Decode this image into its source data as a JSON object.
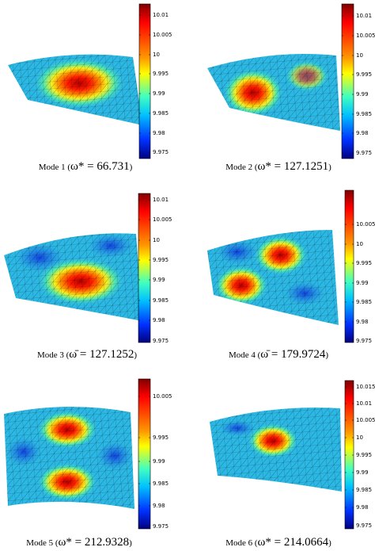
{
  "panels": [
    {
      "caption": {
        "prefix": "Mode 1 (",
        "expr": "ω* = 66.731",
        "suffix": ")"
      },
      "colorbar": [
        "10.01",
        "10.005",
        "10",
        "9.995",
        "9.99",
        "9.985",
        "9.98",
        "9.975"
      ]
    },
    {
      "caption": {
        "prefix": "Mode 2 (",
        "expr": "ω* = 127.1251",
        "suffix": ")"
      },
      "colorbar": [
        "10.01",
        "10.005",
        "10",
        "9.995",
        "9.99",
        "9.985",
        "9.98",
        "9.975"
      ]
    },
    {
      "caption": {
        "prefix": "Mode 3 (",
        "expr": "ω̄ = 127.1252",
        "suffix": ")"
      },
      "colorbar": [
        "10.01",
        "10.005",
        "10",
        "9.995",
        "9.99",
        "9.985",
        "9.98",
        "9.975"
      ]
    },
    {
      "caption": {
        "prefix": "Mode 4 (",
        "expr": "ω̄ = 179.9724",
        "suffix": ")"
      },
      "colorbar": [
        "10.005",
        "10",
        "9.995",
        "9.99",
        "9.985",
        "9.98",
        "9.975"
      ]
    },
    {
      "caption": {
        "prefix": "Mode 5 (",
        "expr": "ω* = 212.9328",
        "suffix": ")"
      },
      "colorbar": [
        "10.005",
        "9.995",
        "9.99",
        "9.985",
        "9.98",
        "9.975"
      ]
    },
    {
      "caption": {
        "prefix": "Mode 6 (",
        "expr": "ω* = 214.0664",
        "suffix": ")"
      },
      "colorbar": [
        "10.015",
        "10.01",
        "10.005",
        "10",
        "9.995",
        "9.99",
        "9.985",
        "9.98",
        "9.975"
      ]
    }
  ]
}
